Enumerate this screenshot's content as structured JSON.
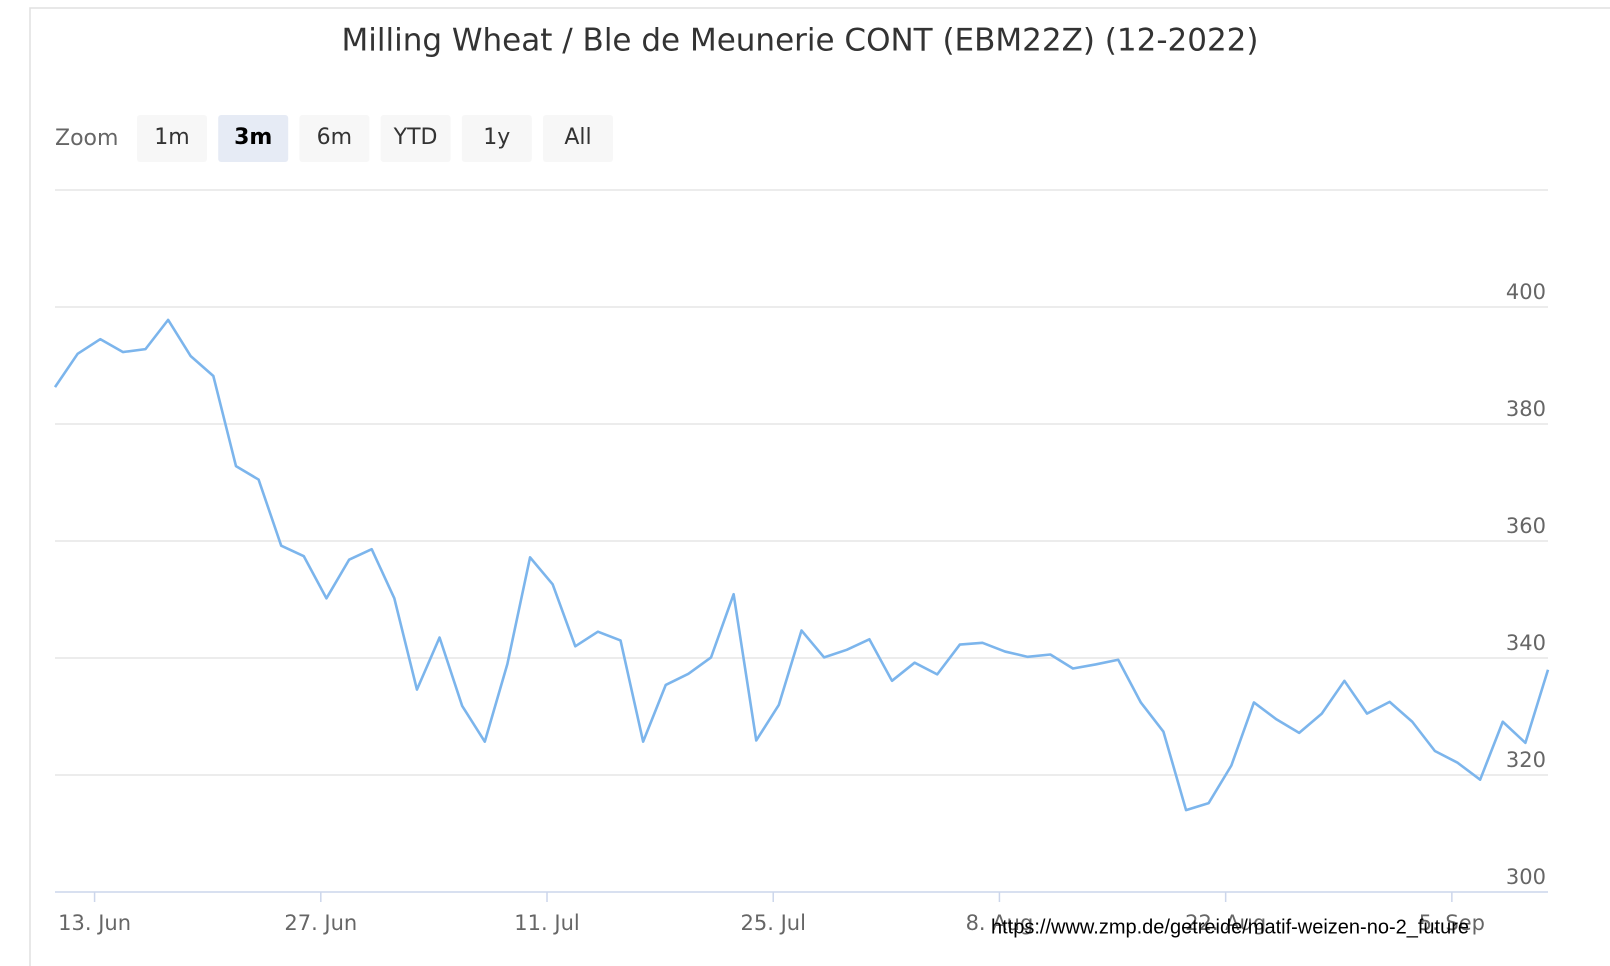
{
  "chart_data": {
    "type": "line",
    "title": "Milling Wheat / Ble de Meunerie CONT (EBM22Z) (12-2022)",
    "range_selector": {
      "label": "Zoom",
      "buttons": [
        "1m",
        "3m",
        "6m",
        "YTD",
        "1y",
        "All"
      ],
      "selected": 1
    },
    "source": "https://www.zmp.de/getreide/matif-weizen-no-2_future",
    "x": [
      "06-10",
      "06-13",
      "06-14",
      "06-15",
      "06-16",
      "06-17",
      "06-20",
      "06-21",
      "06-22",
      "06-23",
      "06-24",
      "06-27",
      "06-28",
      "06-29",
      "06-30",
      "07-01",
      "07-04",
      "07-05",
      "07-06",
      "07-07",
      "07-08",
      "07-11",
      "07-12",
      "07-13",
      "07-14",
      "07-15",
      "07-18",
      "07-19",
      "07-20",
      "07-21",
      "07-22",
      "07-25",
      "07-26",
      "07-27",
      "07-28",
      "07-29",
      "08-01",
      "08-02",
      "08-03",
      "08-04",
      "08-05",
      "08-08",
      "08-09",
      "08-10",
      "08-11",
      "08-12",
      "08-15",
      "08-16",
      "08-17",
      "08-18",
      "08-19",
      "08-22",
      "08-23",
      "08-24",
      "08-25",
      "08-26",
      "08-29",
      "08-30",
      "08-31",
      "09-01",
      "09-02",
      "09-05",
      "09-06",
      "09-07",
      "09-08",
      "09-09",
      "09-12"
    ],
    "series": [
      {
        "name": "EBM22Z",
        "color": "#7cb5ec",
        "values": [
          386.3,
          392.0,
          394.5,
          392.3,
          392.8,
          397.8,
          391.6,
          388.2,
          372.8,
          370.5,
          359.2,
          357.4,
          350.2,
          356.8,
          358.6,
          350.2,
          334.6,
          343.5,
          331.8,
          325.7,
          339.0,
          357.2,
          352.6,
          342.0,
          344.5,
          343.0,
          325.7,
          335.4,
          337.3,
          340.1,
          350.9,
          325.9,
          332.0,
          344.7,
          340.1,
          341.4,
          343.2,
          336.1,
          339.2,
          337.2,
          342.3,
          342.6,
          341.1,
          340.2,
          340.6,
          338.2,
          338.9,
          339.7,
          332.4,
          327.4,
          314.0,
          315.2,
          321.6,
          332.4,
          329.5,
          327.2,
          330.5,
          336.1,
          330.5,
          332.5,
          329.1,
          324.1,
          322.1,
          319.2,
          329.1,
          325.5,
          338.0
        ]
      }
    ],
    "xticks": [
      {
        "value": "06-13",
        "label": "13. Jun"
      },
      {
        "value": "06-27",
        "label": "27. Jun"
      },
      {
        "value": "07-11",
        "label": "11. Jul"
      },
      {
        "value": "07-25",
        "label": "25. Jul"
      },
      {
        "value": "08-08",
        "label": "8. Aug"
      },
      {
        "value": "08-22",
        "label": "22. Aug"
      },
      {
        "value": "09-05",
        "label": "5. Sep"
      }
    ],
    "ylim": [
      300,
      420
    ],
    "yticks": [
      300,
      320,
      340,
      360,
      380,
      400
    ],
    "grid": true
  }
}
